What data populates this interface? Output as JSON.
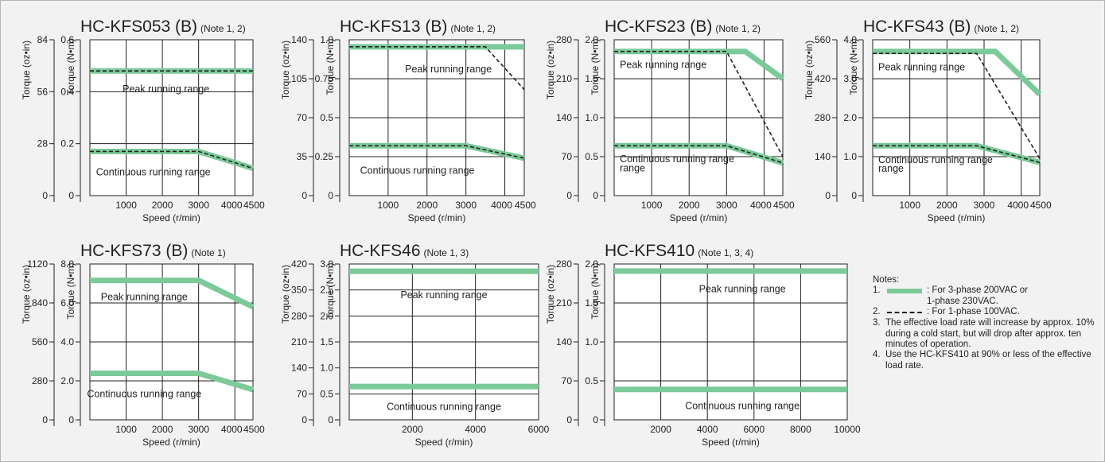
{
  "colors": {
    "continuous_line": "#7cc99a",
    "dashed_line": "#222222",
    "background": "#f2f2f2",
    "plot_bg": "#ffffff"
  },
  "labels": {
    "xlabel": "Speed (r/min)",
    "ylabel_si": "Torque (N•m)",
    "ylabel_imp": "Torque (oz•in)"
  },
  "notes": {
    "title": "Notes:",
    "items": [
      {
        "num": "1.",
        "swatch": "green",
        "text": ": For 3-phase 200VAC or\n1-phase 230VAC."
      },
      {
        "num": "2.",
        "swatch": "dash",
        "text": ": For 1-phase 100VAC."
      },
      {
        "num": "3.",
        "swatch": "",
        "text": "The effective load rate will increase by approx. 10% during a cold start, but will drop after approx. ten minutes of operation."
      },
      {
        "num": "4.",
        "swatch": "",
        "text": "Use the HC-KFS410 at 90% or less of the effective load rate."
      }
    ]
  },
  "chart_data": [
    {
      "type": "line",
      "title": "HC-KFS053 (B)",
      "note": "(Note 1, 2)",
      "xlabel": "Speed (r/min)",
      "ylabel": "Torque (N•m)",
      "ylabel2": "Torque (oz•in)",
      "xlim": [
        0,
        4500
      ],
      "xticks": [
        1000,
        2000,
        3000,
        4000,
        4500
      ],
      "xtick_labels": [
        "1000",
        "2000",
        "3000",
        "4000",
        "4500"
      ],
      "ylim": [
        0,
        0.6
      ],
      "yticks": [
        "0",
        "0.2",
        "0.4",
        "0.6"
      ],
      "y2ticks": [
        "0",
        "28",
        "56",
        "84"
      ],
      "series": [
        {
          "style": "solid",
          "points": [
            [
              0,
              0.48
            ],
            [
              4500,
              0.48
            ]
          ]
        },
        {
          "style": "dashed",
          "points": [
            [
              0,
              0.48
            ],
            [
              4500,
              0.48
            ]
          ]
        },
        {
          "style": "solid",
          "points": [
            [
              0,
              0.17
            ],
            [
              3000,
              0.17
            ],
            [
              4500,
              0.105
            ]
          ]
        },
        {
          "style": "dashed",
          "points": [
            [
              0,
              0.17
            ],
            [
              3000,
              0.17
            ],
            [
              4500,
              0.105
            ]
          ]
        }
      ],
      "annotations": [
        {
          "text": "Peak running range",
          "x": 2100,
          "y": 0.41
        },
        {
          "text": "Continuous running range",
          "x": 1750,
          "y": 0.09
        }
      ]
    },
    {
      "type": "line",
      "title": "HC-KFS13 (B)",
      "note": "(Note 1, 2)",
      "xlabel": "Speed (r/min)",
      "ylabel": "Torque (N•m)",
      "ylabel2": "Torque (oz•in)",
      "xlim": [
        0,
        4500
      ],
      "xticks": [
        1000,
        2000,
        3000,
        4000,
        4500
      ],
      "xtick_labels": [
        "1000",
        "2000",
        "3000",
        "4000",
        "4500"
      ],
      "ylim": [
        0,
        1.0
      ],
      "yticks": [
        "0",
        "0.25",
        "0.5",
        "0.75",
        "1.0"
      ],
      "y2ticks": [
        "0",
        "35",
        "70",
        "105",
        "140"
      ],
      "series": [
        {
          "style": "solid",
          "points": [
            [
              0,
              0.955
            ],
            [
              4500,
              0.955
            ]
          ]
        },
        {
          "style": "dashed",
          "points": [
            [
              0,
              0.955
            ],
            [
              3500,
              0.955
            ],
            [
              4500,
              0.68
            ]
          ]
        },
        {
          "style": "solid",
          "points": [
            [
              0,
              0.32
            ],
            [
              3000,
              0.32
            ],
            [
              4500,
              0.24
            ]
          ]
        },
        {
          "style": "dashed",
          "points": [
            [
              0,
              0.32
            ],
            [
              3000,
              0.32
            ],
            [
              4500,
              0.24
            ]
          ]
        }
      ],
      "annotations": [
        {
          "text": "Peak running range",
          "x": 2550,
          "y": 0.81
        },
        {
          "text": "Continuous running range",
          "x": 1750,
          "y": 0.16
        }
      ]
    },
    {
      "type": "line",
      "title": "HC-KFS23 (B)",
      "note": "(Note 1, 2)",
      "xlabel": "Speed (r/min)",
      "ylabel": "Torque (N•m)",
      "ylabel2": "Torque (oz•in)",
      "xlim": [
        0,
        4500
      ],
      "xticks": [
        1000,
        2000,
        3000,
        4000,
        4500
      ],
      "xtick_labels": [
        "1000",
        "2000",
        "3000",
        "4000",
        "4500"
      ],
      "ylim": [
        0,
        2.0
      ],
      "yticks": [
        "0",
        "0.5",
        "1.0",
        "1.5",
        "2.0"
      ],
      "y2ticks": [
        "0",
        "70",
        "140",
        "210",
        "280"
      ],
      "series": [
        {
          "style": "solid",
          "points": [
            [
              0,
              1.85
            ],
            [
              3500,
              1.85
            ],
            [
              4500,
              1.5
            ]
          ]
        },
        {
          "style": "dashed",
          "points": [
            [
              0,
              1.85
            ],
            [
              3000,
              1.85
            ],
            [
              4500,
              0.5
            ]
          ]
        },
        {
          "style": "solid",
          "points": [
            [
              0,
              0.64
            ],
            [
              3000,
              0.64
            ],
            [
              4500,
              0.42
            ]
          ]
        },
        {
          "style": "dashed",
          "points": [
            [
              0,
              0.64
            ],
            [
              3000,
              0.64
            ],
            [
              4500,
              0.42
            ]
          ]
        }
      ],
      "annotations": [
        {
          "text": "Peak running range",
          "x": 150,
          "y": 1.68,
          "anchor": "start"
        },
        {
          "text": "Continuous running range",
          "x": 150,
          "y": 0.47,
          "anchor": "start"
        },
        {
          "text": "range",
          "x": 150,
          "y": 0.35,
          "anchor": "start"
        }
      ]
    },
    {
      "type": "line",
      "title": "HC-KFS43 (B)",
      "note": "(Note 1, 2)",
      "xlabel": "Speed (r/min)",
      "ylabel": "Torque (N•m)",
      "ylabel2": "Torque (oz•in)",
      "xlim": [
        0,
        4500
      ],
      "xticks": [
        1000,
        2000,
        3000,
        4000,
        4500
      ],
      "xtick_labels": [
        "1000",
        "2000",
        "3000",
        "4000",
        "4500"
      ],
      "ylim": [
        0,
        4.0
      ],
      "yticks": [
        "0",
        "1.0",
        "2.0",
        "3.0",
        "4.0"
      ],
      "y2ticks": [
        "0",
        "140",
        "280",
        "420",
        "560"
      ],
      "series": [
        {
          "style": "solid",
          "points": [
            [
              0,
              3.7
            ],
            [
              3300,
              3.7
            ],
            [
              4500,
              2.6
            ]
          ]
        },
        {
          "style": "dashed",
          "points": [
            [
              0,
              3.65
            ],
            [
              2800,
              3.65
            ],
            [
              4500,
              0.95
            ]
          ]
        },
        {
          "style": "solid",
          "points": [
            [
              0,
              1.28
            ],
            [
              2800,
              1.28
            ],
            [
              4500,
              0.85
            ]
          ]
        },
        {
          "style": "dashed",
          "points": [
            [
              0,
              1.28
            ],
            [
              2800,
              1.28
            ],
            [
              4500,
              0.85
            ]
          ]
        }
      ],
      "annotations": [
        {
          "text": "Peak running range",
          "x": 150,
          "y": 3.3,
          "anchor": "start"
        },
        {
          "text": "Continuous running range",
          "x": 150,
          "y": 0.92,
          "anchor": "start"
        },
        {
          "text": "range",
          "x": 150,
          "y": 0.69,
          "anchor": "start"
        }
      ]
    },
    {
      "type": "line",
      "title": "HC-KFS73 (B)",
      "note": "(Note 1)",
      "xlabel": "Speed (r/min)",
      "ylabel": "Torque (N•m)",
      "ylabel2": "Torque (oz•in)",
      "xlim": [
        0,
        4500
      ],
      "xticks": [
        1000,
        2000,
        3000,
        4000,
        4500
      ],
      "xtick_labels": [
        "1000",
        "2000",
        "3000",
        "4000",
        "4500"
      ],
      "ylim": [
        0,
        8.0
      ],
      "yticks": [
        "0",
        "2.0",
        "4.0",
        "6.0",
        "8.0"
      ],
      "y2ticks": [
        "0",
        "280",
        "560",
        "840",
        "1120"
      ],
      "series": [
        {
          "style": "solid",
          "points": [
            [
              0,
              7.16
            ],
            [
              3000,
              7.16
            ],
            [
              4500,
              5.8
            ]
          ]
        },
        {
          "style": "solid",
          "points": [
            [
              0,
              2.39
            ],
            [
              3000,
              2.39
            ],
            [
              4500,
              1.55
            ]
          ]
        }
      ],
      "annotations": [
        {
          "text": "Peak running range",
          "x": 1500,
          "y": 6.3
        },
        {
          "text": "Continuous running range",
          "x": 1500,
          "y": 1.32
        }
      ]
    },
    {
      "type": "line",
      "title": "HC-KFS46",
      "note": "(Note 1, 3)",
      "xlabel": "Speed (r/min)",
      "ylabel": "Torque (N•m)",
      "ylabel2": "Torque (oz•in)",
      "xlim": [
        0,
        6000
      ],
      "xticks": [
        2000,
        4000,
        6000
      ],
      "xtick_labels": [
        "2000",
        "4000",
        "6000"
      ],
      "ylim": [
        0,
        3.0
      ],
      "yticks": [
        "0",
        "0.5",
        "1.0",
        "1.5",
        "2.0",
        "2.5",
        "3.0"
      ],
      "y2ticks": [
        "0",
        "70",
        "140",
        "210",
        "280",
        "350",
        "420"
      ],
      "series": [
        {
          "style": "solid",
          "points": [
            [
              0,
              2.86
            ],
            [
              6000,
              2.86
            ]
          ]
        },
        {
          "style": "solid",
          "points": [
            [
              0,
              0.64
            ],
            [
              6000,
              0.64
            ]
          ]
        }
      ],
      "annotations": [
        {
          "text": "Peak running range",
          "x": 3000,
          "y": 2.4
        },
        {
          "text": "Continuous running range",
          "x": 3000,
          "y": 0.25
        }
      ]
    },
    {
      "type": "line",
      "title": "HC-KFS410",
      "note": "(Note 1, 3, 4)",
      "xlabel": "Speed (r/min)",
      "ylabel": "Torque (N•m)",
      "ylabel2": "Torque (oz•in)",
      "xlim": [
        0,
        10000
      ],
      "xticks": [
        2000,
        4000,
        6000,
        8000,
        10000
      ],
      "xtick_labels": [
        "2000",
        "4000",
        "6000",
        "8000",
        "10000"
      ],
      "ylim": [
        0,
        2.0
      ],
      "yticks": [
        "0",
        "0.5",
        "1.0",
        "1.5",
        "2.0"
      ],
      "y2ticks": [
        "0",
        "70",
        "140",
        "210",
        "280"
      ],
      "series": [
        {
          "style": "solid",
          "points": [
            [
              0,
              1.91
            ],
            [
              10000,
              1.91
            ]
          ]
        },
        {
          "style": "solid",
          "points": [
            [
              0,
              0.39
            ],
            [
              10000,
              0.39
            ]
          ]
        }
      ],
      "annotations": [
        {
          "text": "Peak running range",
          "x": 5500,
          "y": 1.68
        },
        {
          "text": "Continuous running range",
          "x": 5500,
          "y": 0.18
        }
      ]
    }
  ]
}
